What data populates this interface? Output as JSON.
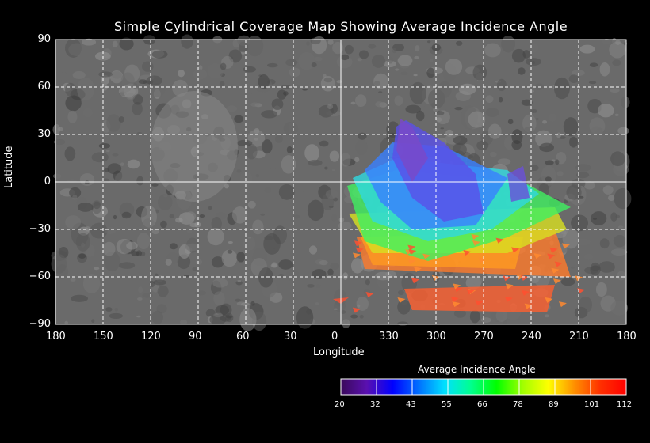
{
  "title": "Simple Cylindrical Coverage Map Showing Average Incidence Angle",
  "chart_data": {
    "type": "map",
    "projection": "simple cylindrical",
    "title": "Simple Cylindrical Coverage Map Showing Average Incidence Angle",
    "xlabel": "Longitude",
    "ylabel": "Latitude",
    "x_ticks": [
      "180",
      "150",
      "120",
      "90",
      "60",
      "30",
      "0",
      "330",
      "300",
      "270",
      "240",
      "210",
      "180"
    ],
    "y_ticks": [
      "90",
      "60",
      "30",
      "0",
      "−30",
      "−60",
      "−90"
    ],
    "grid": true,
    "colorbar": {
      "title": "Average Incidence Angle",
      "ticks": [
        "20",
        "32",
        "43",
        "55",
        "66",
        "78",
        "89",
        "101",
        "112"
      ],
      "range": [
        20,
        112
      ],
      "colors": [
        "#3a0a5a",
        "#5a10b0",
        "#0000ff",
        "#0070ff",
        "#00e0ff",
        "#00ff90",
        "#00ff00",
        "#a0ff00",
        "#ffff00",
        "#ff9000",
        "#ff3000",
        "#ff0000"
      ]
    },
    "coverage_note_region": {
      "lon_range": [
        350,
        210
      ],
      "lat_range": [
        40,
        -82
      ]
    }
  }
}
